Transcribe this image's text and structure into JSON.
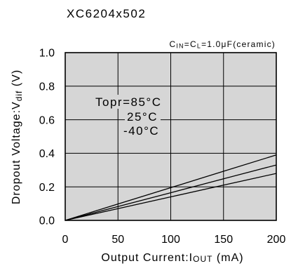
{
  "title": "XC6204x502",
  "condition": {
    "c1": "C",
    "sub1": "IN",
    "c2": "=C",
    "sub2": "L",
    "rest": "=1.0μF(ceramic)"
  },
  "chart_data": {
    "type": "line",
    "xlabel": {
      "text": "Output Current:I",
      "sub": "OUT",
      "unit": " (mA)"
    },
    "ylabel": {
      "text": "Dropout Voltage:V",
      "sub": "dif",
      "unit": " (V)"
    },
    "xlim": [
      0,
      200
    ],
    "ylim": [
      0,
      1.0
    ],
    "xtick_labels": [
      "0",
      "50",
      "100",
      "150",
      "200"
    ],
    "ytick_labels": [
      "0.0",
      "0.2",
      "0.4",
      "0.6",
      "0.8",
      "1.0"
    ],
    "grid": true,
    "legend": {
      "prefix": "Topr=",
      "placement": "inside-left"
    },
    "x": [
      0,
      50,
      100,
      150,
      200
    ],
    "series": [
      {
        "name": "85°C",
        "values": [
          0,
          0.098,
          0.195,
          0.293,
          0.39
        ]
      },
      {
        "name": "25°C",
        "values": [
          0,
          0.083,
          0.165,
          0.248,
          0.33
        ]
      },
      {
        "name": "-40°C",
        "values": [
          0,
          0.07,
          0.14,
          0.21,
          0.28
        ]
      }
    ],
    "colors": {
      "plot_bg": "#d6d6d6",
      "line": "#000000"
    }
  }
}
